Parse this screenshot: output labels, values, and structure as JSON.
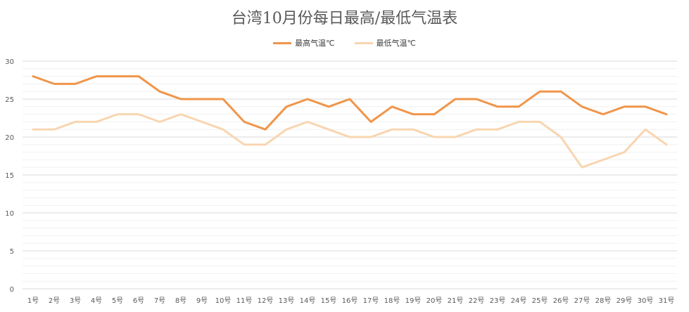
{
  "chart_data": {
    "type": "line",
    "title": "台湾10月份每日最高/最低气温表",
    "categories": [
      "1号",
      "2号",
      "3号",
      "4号",
      "5号",
      "6号",
      "7号",
      "8号",
      "9号",
      "10号",
      "11号",
      "12号",
      "13号",
      "14号",
      "15号",
      "16号",
      "17号",
      "18号",
      "19号",
      "20号",
      "21号",
      "22号",
      "23号",
      "24号",
      "25号",
      "26号",
      "27号",
      "28号",
      "29号",
      "30号",
      "31号"
    ],
    "series": [
      {
        "name": "最高气温℃",
        "color": "#f0954a",
        "values": [
          28,
          27,
          27,
          28,
          28,
          28,
          26,
          25,
          25,
          25,
          22,
          21,
          24,
          25,
          24,
          25,
          22,
          24,
          23,
          23,
          25,
          25,
          24,
          24,
          26,
          26,
          24,
          23,
          24,
          24,
          23
        ]
      },
      {
        "name": "最低气温℃",
        "color": "#f8d5b0",
        "values": [
          21,
          21,
          22,
          22,
          23,
          23,
          22,
          23,
          22,
          21,
          19,
          19,
          21,
          22,
          21,
          20,
          20,
          21,
          21,
          20,
          20,
          21,
          21,
          22,
          22,
          20,
          16,
          17,
          18,
          21,
          19
        ]
      }
    ],
    "ylim": [
      0,
      30
    ],
    "yticks": [
      "0",
      "5",
      "10",
      "15",
      "20",
      "25",
      "30"
    ],
    "xlabel": "",
    "ylabel": "",
    "grid": true,
    "legend_position": "top-center"
  }
}
